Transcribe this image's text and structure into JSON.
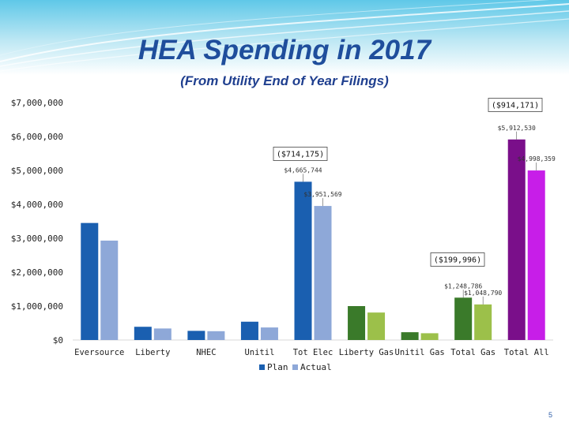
{
  "slide": {
    "title": "HEA Spending in 2017",
    "subtitle": "(From Utility End of Year Filings)",
    "page_number": "5"
  },
  "colors": {
    "plan_electric": "#1a5fb0",
    "actual_electric": "#8ea8d8",
    "plan_gas": "#3a7a2a",
    "actual_gas": "#9cc04a",
    "plan_total_all": "#7a0f8a",
    "actual_total_all": "#c71ee8",
    "title": "#1f4e9c"
  },
  "chart_data": {
    "type": "bar",
    "title": "",
    "xlabel": "",
    "ylabel": "",
    "ylim": [
      0,
      7000000
    ],
    "ytick_values": [
      0,
      1000000,
      2000000,
      3000000,
      4000000,
      5000000,
      6000000,
      7000000
    ],
    "ytick_labels": [
      "$0",
      "$1,000,000",
      "$2,000,000",
      "$3,000,000",
      "$4,000,000",
      "$5,000,000",
      "$6,000,000",
      "$7,000,000"
    ],
    "categories": [
      "Eversource",
      "Liberty",
      "NHEC",
      "Unitil",
      "Tot Elec",
      "Liberty Gas",
      "Unitil Gas",
      "Total Gas",
      "Total All"
    ],
    "category_groups": [
      "electric",
      "electric",
      "electric",
      "electric",
      "electric",
      "gas",
      "gas",
      "gas",
      "total"
    ],
    "series": [
      {
        "name": "Plan",
        "values": [
          3450000,
          390000,
          270000,
          540000,
          4665744,
          1000000,
          230000,
          1248786,
          5912530
        ]
      },
      {
        "name": "Actual",
        "values": [
          2930000,
          340000,
          260000,
          370000,
          3951569,
          810000,
          200000,
          1048790,
          4998359
        ]
      }
    ],
    "data_labels": [
      {
        "category": "Tot Elec",
        "series": "Plan",
        "text": "$4,665,744"
      },
      {
        "category": "Tot Elec",
        "series": "Actual",
        "text": "$3,951,569"
      },
      {
        "category": "Total Gas",
        "series": "Plan",
        "text": "$1,248,786"
      },
      {
        "category": "Total Gas",
        "series": "Actual",
        "text": "$1,048,790"
      },
      {
        "category": "Total All",
        "series": "Plan",
        "text": "$5,912,530"
      },
      {
        "category": "Total All",
        "series": "Actual",
        "text": "$4,998,359"
      }
    ],
    "variance_annotations": [
      {
        "category": "Tot Elec",
        "text": "($714,175)"
      },
      {
        "category": "Total Gas",
        "text": "($199,996)"
      },
      {
        "category": "Total All",
        "text": "($914,171)"
      }
    ],
    "legend": {
      "entries": [
        "Plan",
        "Actual"
      ],
      "position": "bottom-center"
    },
    "grid": false
  }
}
